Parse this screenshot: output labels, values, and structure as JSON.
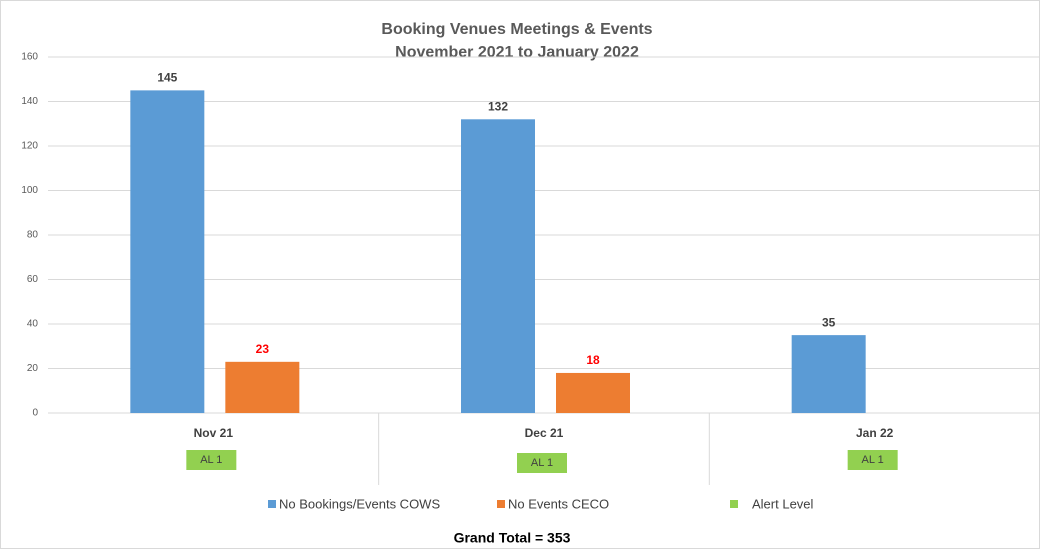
{
  "chart_data": {
    "type": "bar",
    "title": [
      "Booking Venues Meetings & Events",
      "November 2021 to  January 2022"
    ],
    "categories": [
      "Nov 21",
      "Dec 21",
      "Jan 22"
    ],
    "series": [
      {
        "name": "No Bookings/Events COWS",
        "color": "#5b9bd5",
        "label_color": "#404040",
        "values": [
          145,
          132,
          35
        ]
      },
      {
        "name": "No Events CECO",
        "color": "#ed7d31",
        "label_color": "#ff0000",
        "values": [
          23,
          18,
          null
        ]
      }
    ],
    "alert_level": {
      "name": "Alert Level",
      "color": "#92d050",
      "labels": [
        "AL 1",
        "AL 1",
        "AL 1"
      ]
    },
    "ylim": [
      0,
      160
    ],
    "yticks": [
      0,
      20,
      40,
      60,
      80,
      100,
      120,
      140,
      160
    ],
    "grid": true,
    "annotation": "Grand Total  = 353"
  }
}
